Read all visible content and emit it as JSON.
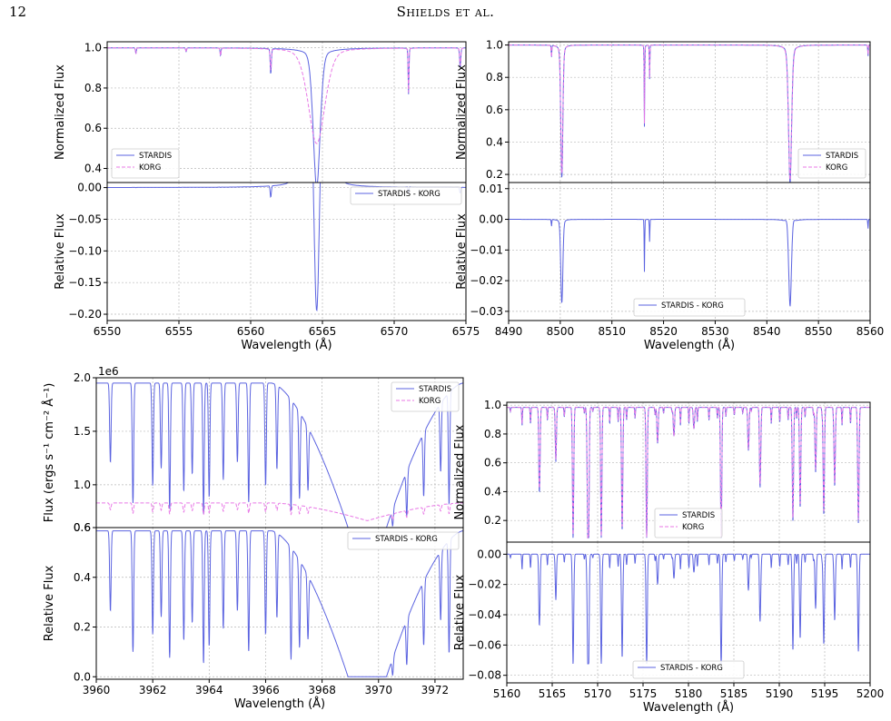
{
  "page": {
    "number": "12",
    "running_head": "Shields et al."
  },
  "colors": {
    "stardis": "#5b63e0",
    "korg": "#e879e6",
    "grid": "#b8b8b8",
    "axis": "#000000"
  },
  "chart_data": [
    {
      "id": "A",
      "type": "line",
      "x": {
        "label": "Wavelength (Å)",
        "range": [
          6550,
          6575
        ],
        "ticks": [
          6550,
          6555,
          6560,
          6565,
          6570,
          6575
        ]
      },
      "top": {
        "ylabel": "Normalized Flux",
        "ylim": [
          0.33,
          1.03
        ],
        "yticks": [
          0.4,
          0.6,
          0.8,
          1.0
        ],
        "legend": [
          "STARDIS",
          "KORG"
        ],
        "legend_position": "lower-left",
        "continuum": 1.0,
        "lines": [
          {
            "center": 6564.6,
            "stardis_depth": 0.68,
            "korg_depth": 0.47,
            "stardis_width": 0.25,
            "korg_width": 0.6,
            "wing": 1.6
          },
          {
            "center": 6571.0,
            "stardis_depth": 0.23,
            "korg_depth": 0.22,
            "stardis_width": 0.03,
            "korg_width": 0.03,
            "wing": 0.0
          },
          {
            "center": 6561.4,
            "stardis_depth": 0.13,
            "korg_depth": 0.11,
            "stardis_width": 0.04,
            "korg_width": 0.04,
            "wing": 0.0
          },
          {
            "center": 6574.6,
            "stardis_depth": 0.1,
            "korg_depth": 0.09,
            "stardis_width": 0.04,
            "korg_width": 0.04,
            "wing": 0.0
          },
          {
            "center": 6552.0,
            "stardis_depth": 0.03,
            "korg_depth": 0.03,
            "stardis_width": 0.03,
            "korg_width": 0.03,
            "wing": 0.0
          },
          {
            "center": 6555.5,
            "stardis_depth": 0.02,
            "korg_depth": 0.02,
            "stardis_width": 0.03,
            "korg_width": 0.03,
            "wing": 0.0
          },
          {
            "center": 6557.9,
            "stardis_depth": 0.04,
            "korg_depth": 0.04,
            "stardis_width": 0.03,
            "korg_width": 0.03,
            "wing": 0.0
          }
        ]
      },
      "bottom": {
        "ylabel": "Relative Flux",
        "ylim": [
          -0.21,
          0.008
        ],
        "yticks": [
          0.0,
          -0.05,
          -0.1,
          -0.15,
          -0.2
        ],
        "ytick_labels": [
          "0.00",
          "−0.05",
          "−0.10",
          "−0.15",
          "−0.20"
        ],
        "legend": [
          "STARDIS - KORG"
        ],
        "legend_position": "upper-right"
      }
    },
    {
      "id": "B",
      "type": "line",
      "x": {
        "label": "Wavelength (Å)",
        "range": [
          8490,
          8560
        ],
        "ticks": [
          8490,
          8500,
          8510,
          8520,
          8530,
          8540,
          8550,
          8560
        ]
      },
      "top": {
        "ylabel": "Normalized Flux",
        "ylim": [
          0.15,
          1.02
        ],
        "yticks": [
          0.2,
          0.4,
          0.6,
          0.8,
          1.0
        ],
        "legend": [
          "STARDIS",
          "KORG"
        ],
        "legend_position": "lower-right",
        "continuum": 1.0,
        "lines": [
          {
            "center": 8500.3,
            "stardis_depth": 0.82,
            "korg_depth": 0.8,
            "stardis_width": 0.2,
            "korg_width": 0.2,
            "wing": 0.5
          },
          {
            "center": 8544.5,
            "stardis_depth": 0.85,
            "korg_depth": 0.83,
            "stardis_width": 0.3,
            "korg_width": 0.32,
            "wing": 1.2
          },
          {
            "center": 8516.3,
            "stardis_depth": 0.52,
            "korg_depth": 0.5,
            "stardis_width": 0.05,
            "korg_width": 0.05,
            "wing": 0.0
          },
          {
            "center": 8517.3,
            "stardis_depth": 0.21,
            "korg_depth": 0.2,
            "stardis_width": 0.05,
            "korg_width": 0.05,
            "wing": 0.0
          },
          {
            "center": 8498.3,
            "stardis_depth": 0.08,
            "korg_depth": 0.08,
            "stardis_width": 0.05,
            "korg_width": 0.05,
            "wing": 0.0
          },
          {
            "center": 8559.6,
            "stardis_depth": 0.07,
            "korg_depth": 0.06,
            "stardis_width": 0.05,
            "korg_width": 0.05,
            "wing": 0.0
          }
        ]
      },
      "bottom": {
        "ylabel": "Relative Flux",
        "ylim": [
          -0.033,
          0.012
        ],
        "yticks": [
          0.01,
          0.0,
          -0.01,
          -0.02,
          -0.03
        ],
        "ytick_labels": [
          "0.01",
          "0.00",
          "−0.01",
          "−0.02",
          "−0.03"
        ],
        "legend": [
          "STARDIS - KORG"
        ],
        "legend_position": "lower-center"
      }
    },
    {
      "id": "C",
      "type": "line",
      "x": {
        "label": "Wavelength (Å)",
        "range": [
          3960,
          3973
        ],
        "ticks": [
          3960,
          3962,
          3964,
          3966,
          3968,
          3970,
          3972
        ]
      },
      "top": {
        "ylabel": "Flux (ergs s⁻¹ cm⁻² Å⁻¹)",
        "offset_label": "1e6",
        "ylim": [
          600000,
          2000000
        ],
        "yticks": [
          600000,
          1000000,
          1500000,
          2000000
        ],
        "ytick_labels": [
          "0.6",
          "1.0",
          "1.5",
          "2.0"
        ],
        "legend": [
          "STARDIS",
          "KORG"
        ],
        "legend_position": "upper-right",
        "stardis_continuum": 1950000,
        "korg_continuum": 830000,
        "broad_center": 3969.6,
        "lines": [
          3960.5,
          3961.3,
          3962.0,
          3962.3,
          3962.6,
          3963.1,
          3963.4,
          3963.8,
          3964.0,
          3964.5,
          3965.0,
          3965.4,
          3966.0,
          3966.4,
          3966.9,
          3967.2,
          3967.5,
          3970.5,
          3971.0,
          3971.6,
          3972.2,
          3972.5
        ]
      },
      "bottom": {
        "ylabel": "Relative Flux",
        "ylim": [
          -0.01,
          0.6
        ],
        "yticks": [
          0.0,
          0.2,
          0.4,
          0.6
        ],
        "legend": [
          "STARDIS - KORG"
        ],
        "legend_position": "upper-right"
      }
    },
    {
      "id": "D",
      "type": "line",
      "x": {
        "label": "Wavelength (Å)",
        "range": [
          5160,
          5200
        ],
        "ticks": [
          5160,
          5165,
          5170,
          5175,
          5180,
          5185,
          5190,
          5195,
          5200
        ]
      },
      "top": {
        "ylabel": "Normalized Flux",
        "ylim": [
          0.05,
          1.02
        ],
        "yticks": [
          0.2,
          0.4,
          0.6,
          0.8,
          1.0
        ],
        "legend": [
          "STARDIS",
          "KORG"
        ],
        "legend_position": "lower-center",
        "continuum": 0.985,
        "lines": [
          {
            "center": 5167.3,
            "stardis_depth": 0.88,
            "korg_depth": 0.86
          },
          {
            "center": 5168.9,
            "stardis_depth": 0.62,
            "korg_depth": 0.6
          },
          {
            "center": 5169.0,
            "stardis_depth": 0.85,
            "korg_depth": 0.83
          },
          {
            "center": 5170.4,
            "stardis_depth": 0.8,
            "korg_depth": 0.78
          },
          {
            "center": 5172.7,
            "stardis_depth": 0.86,
            "korg_depth": 0.84
          },
          {
            "center": 5175.4,
            "stardis_depth": 0.86,
            "korg_depth": 0.84
          },
          {
            "center": 5183.6,
            "stardis_depth": 0.92,
            "korg_depth": 0.9
          },
          {
            "center": 5163.6,
            "stardis_depth": 0.55,
            "korg_depth": 0.53
          },
          {
            "center": 5191.5,
            "stardis_depth": 0.8,
            "korg_depth": 0.78
          },
          {
            "center": 5192.3,
            "stardis_depth": 0.7,
            "korg_depth": 0.68
          },
          {
            "center": 5194.9,
            "stardis_depth": 0.75,
            "korg_depth": 0.73
          },
          {
            "center": 5198.7,
            "stardis_depth": 0.78,
            "korg_depth": 0.76
          },
          {
            "center": 5187.9,
            "stardis_depth": 0.5,
            "korg_depth": 0.48
          },
          {
            "center": 5186.6,
            "stardis_depth": 0.3,
            "korg_depth": 0.29
          },
          {
            "center": 5196.1,
            "stardis_depth": 0.55,
            "korg_depth": 0.53
          },
          {
            "center": 5194.0,
            "stardis_depth": 0.45,
            "korg_depth": 0.43
          },
          {
            "center": 5178.4,
            "stardis_depth": 0.2,
            "korg_depth": 0.2
          },
          {
            "center": 5180.6,
            "stardis_depth": 0.15,
            "korg_depth": 0.15
          },
          {
            "center": 5176.6,
            "stardis_depth": 0.25,
            "korg_depth": 0.24
          },
          {
            "center": 5165.4,
            "stardis_depth": 0.3,
            "korg_depth": 0.29
          }
        ]
      },
      "bottom": {
        "ylabel": "Relative Flux",
        "ylim": [
          -0.085,
          0.008
        ],
        "yticks": [
          0.0,
          -0.02,
          -0.04,
          -0.06,
          -0.08
        ],
        "ytick_labels": [
          "0.00",
          "−0.02",
          "−0.04",
          "−0.06",
          "−0.08"
        ],
        "legend": [
          "STARDIS - KORG"
        ],
        "legend_position": "lower-center"
      }
    }
  ]
}
